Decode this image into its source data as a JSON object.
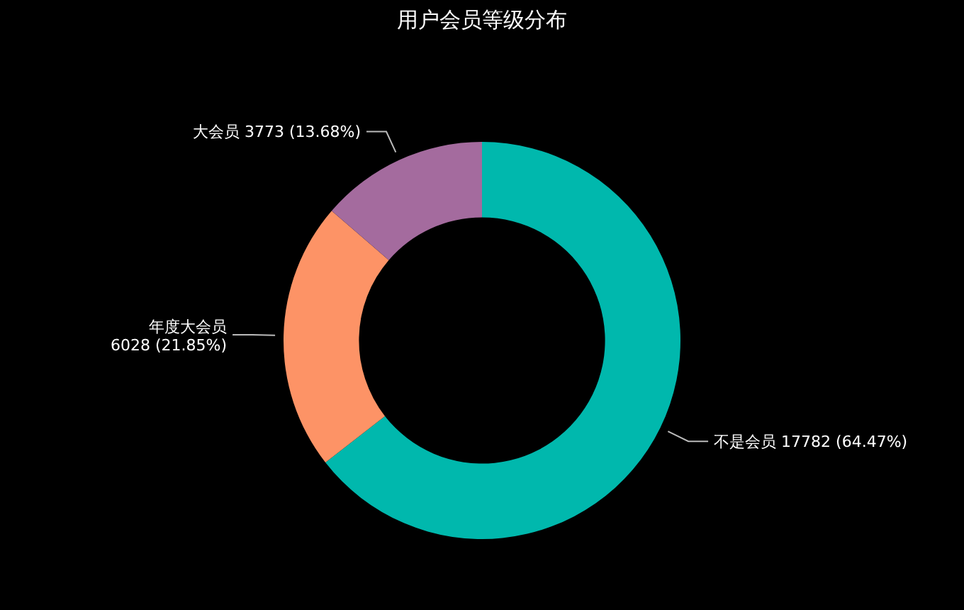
{
  "chart_data": {
    "type": "donut",
    "title": "用户会员等级分布",
    "categories": [
      "不是会员",
      "年度大会员",
      "大会员"
    ],
    "values": [
      17782,
      6028,
      3773
    ],
    "value_labels": [
      "17782 (64.47%)",
      "6028 (21.85%)",
      "3773 (13.68%)"
    ],
    "colors": [
      "#00b8ad",
      "#fd9366",
      "#a46b9e"
    ]
  }
}
